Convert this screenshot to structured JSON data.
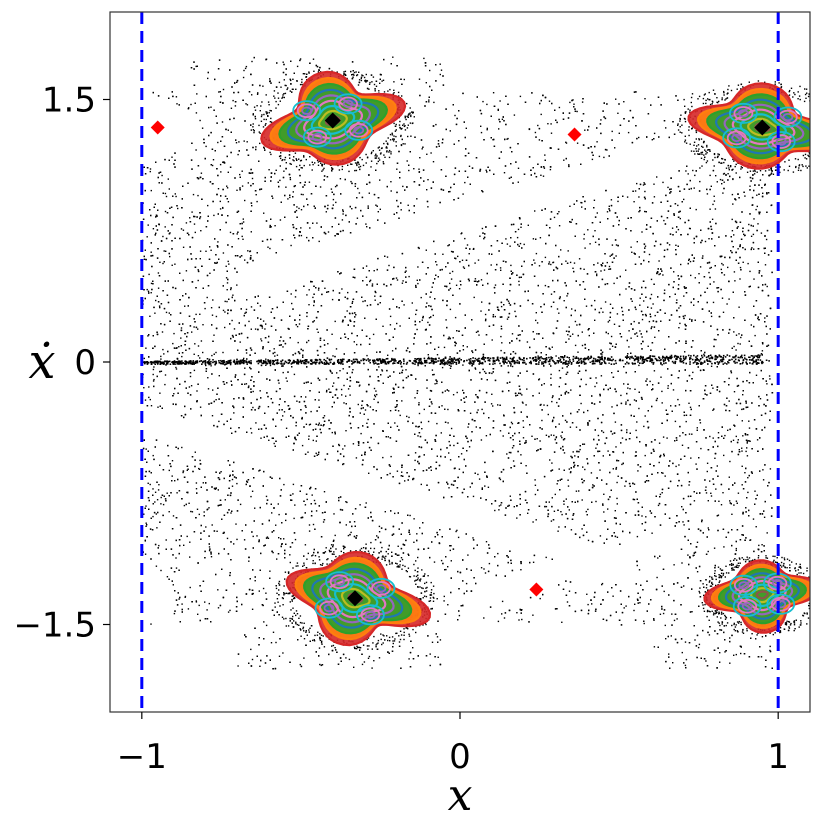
{
  "chart_data": {
    "type": "scatter",
    "xlabel": "x",
    "ylabel": "ẋ",
    "xlim": [
      -1.1,
      1.1
    ],
    "ylim": [
      -2.0,
      2.0
    ],
    "xticks": [
      {
        "value": -1,
        "label": "−1"
      },
      {
        "value": 0,
        "label": "0"
      },
      {
        "value": 1,
        "label": "1"
      }
    ],
    "yticks": [
      {
        "value": 1.5,
        "label": "1.5"
      },
      {
        "value": 0,
        "label": "0"
      },
      {
        "value": -1.5,
        "label": "−1.5"
      }
    ],
    "grid": false,
    "legend": "none",
    "boundary_lines": {
      "x": [
        -1,
        1
      ],
      "color": "#0000ff",
      "style": "dashed"
    },
    "chaotic_sea": {
      "description_color": "#000000"
    },
    "zero_velocity_band": {
      "x_range": [
        -1.0,
        0.95
      ],
      "y_at_left": 0.0,
      "y_at_right": 0.02
    },
    "stable_islands": [
      {
        "center": [
          -0.4,
          1.38
        ],
        "half_width_x": 0.19,
        "half_width_y": 0.22,
        "tilt": -0.25
      },
      {
        "center": [
          0.95,
          1.34
        ],
        "half_width_x": 0.2,
        "half_width_y": 0.2,
        "tilt": 0.15
      },
      {
        "center": [
          -0.33,
          -1.35
        ],
        "half_width_x": 0.19,
        "half_width_y": 0.22,
        "tilt": 0.25
      },
      {
        "center": [
          0.95,
          -1.33
        ],
        "half_width_x": 0.15,
        "half_width_y": 0.17,
        "tilt": -0.1
      }
    ],
    "island_orbit_colors": [
      "#d62728",
      "#ff7f0e",
      "#2ca02c",
      "#1f77b4",
      "#9467bd",
      "#e377c2",
      "#17becf",
      "#bcbd22",
      "#8c564b",
      "#7f7f7f"
    ],
    "fixed_points_black": [
      {
        "x": -0.4,
        "y": 1.38
      },
      {
        "x": 0.95,
        "y": 1.34
      },
      {
        "x": -0.33,
        "y": -1.35
      }
    ],
    "fixed_points_red": [
      {
        "x": -0.95,
        "y": 1.34
      },
      {
        "x": 0.36,
        "y": 1.3
      },
      {
        "x": 0.24,
        "y": -1.3
      }
    ]
  }
}
